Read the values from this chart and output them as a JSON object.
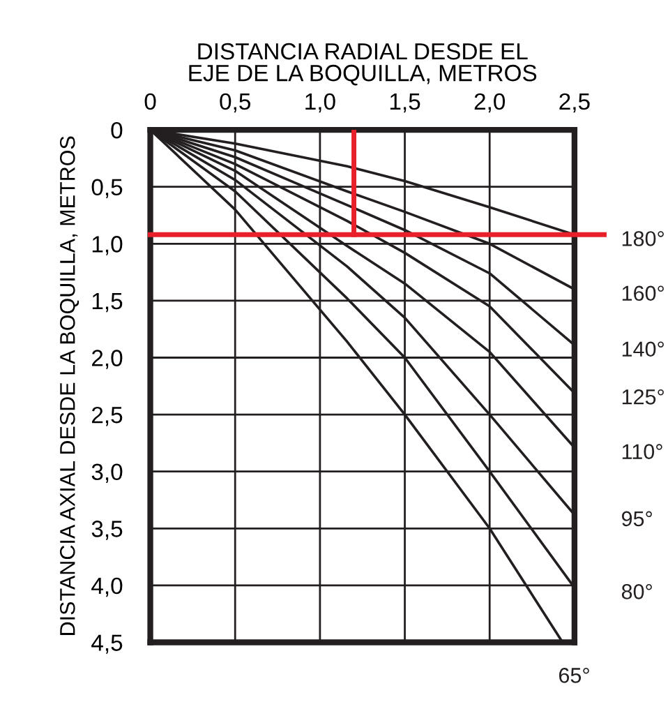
{
  "chart_data": {
    "type": "line",
    "xlabel": "DISTANCIA RADIAL DESDE EL\nEJE DE LA BOQUILLA, METROS",
    "ylabel": "DISTANCIA AXIAL DESDE LA BOQUILLA, METROS",
    "xlim": [
      0,
      2.5
    ],
    "ylim": [
      4.5,
      0
    ],
    "xticks": [
      0,
      {
        "value": 0.5,
        "label": "0,5"
      },
      {
        "value": 1,
        "label": "1,0"
      },
      {
        "value": 1.5,
        "label": "1,5"
      },
      {
        "value": 2,
        "label": "2,0"
      },
      {
        "value": 2.5,
        "label": "2,5"
      }
    ],
    "yticks": [
      0,
      {
        "value": 0.5,
        "label": "0,5"
      },
      {
        "value": 1,
        "label": "1,0"
      },
      {
        "value": 1.5,
        "label": "1,5"
      },
      {
        "value": 2,
        "label": "2,0"
      },
      {
        "value": 2.5,
        "label": "2,5"
      },
      {
        "value": 3,
        "label": "3,0"
      },
      {
        "value": 3.5,
        "label": "3,5"
      },
      {
        "value": 4,
        "label": "4,0"
      },
      {
        "value": 4.5,
        "label": "4,5"
      }
    ],
    "grid": true,
    "marker": "none",
    "line_style": "solid",
    "series": [
      {
        "name": "180°",
        "color": "#231f20",
        "x": [
          0,
          0.5,
          1.16,
          1.5,
          2.0,
          2.5
        ],
        "values": [
          0,
          0.12,
          0.32,
          0.45,
          0.68,
          0.92
        ]
      },
      {
        "name": "160°",
        "color": "#231f20",
        "x": [
          0,
          0.5,
          1.16,
          1.5,
          2.0,
          2.5
        ],
        "values": [
          0,
          0.18,
          0.54,
          0.72,
          1.0,
          1.4
        ]
      },
      {
        "name": "140°",
        "color": "#231f20",
        "x": [
          0,
          0.5,
          1.16,
          1.5,
          2.0,
          2.5
        ],
        "values": [
          0,
          0.24,
          0.66,
          0.88,
          1.26,
          1.89
        ]
      },
      {
        "name": "125°",
        "color": "#231f20",
        "x": [
          0,
          0.5,
          1.16,
          1.5,
          2.0,
          2.5
        ],
        "values": [
          0,
          0.3,
          0.8,
          1.08,
          1.55,
          2.31
        ]
      },
      {
        "name": "110°",
        "color": "#231f20",
        "x": [
          0,
          0.5,
          1.16,
          1.5,
          2.0,
          2.5
        ],
        "values": [
          0,
          0.36,
          1.02,
          1.35,
          1.95,
          2.79
        ]
      },
      {
        "name": "95°",
        "color": "#231f20",
        "x": [
          0,
          0.5,
          1.16,
          1.5,
          2.0,
          2.5
        ],
        "values": [
          0,
          0.44,
          1.2,
          1.65,
          2.5,
          3.38
        ]
      },
      {
        "name": "80°",
        "color": "#231f20",
        "x": [
          0,
          0.5,
          1.16,
          1.5,
          2.0,
          2.5
        ],
        "values": [
          0,
          0.54,
          1.48,
          2.0,
          3.0,
          4.02
        ]
      },
      {
        "name": "65°",
        "color": "#231f20",
        "x": [
          0,
          0.5,
          1.16,
          1.5,
          2.0,
          2.43
        ],
        "values": [
          0,
          0.7,
          1.86,
          2.5,
          3.5,
          4.5
        ]
      },
      {
        "color": "#e8202a",
        "x": [
          1.2,
          1.2
        ],
        "values": [
          0,
          0.92
        ]
      }
    ],
    "ref_lines": [
      {
        "axis": "y",
        "value": 0.92,
        "color": "#e8202a"
      }
    ]
  }
}
